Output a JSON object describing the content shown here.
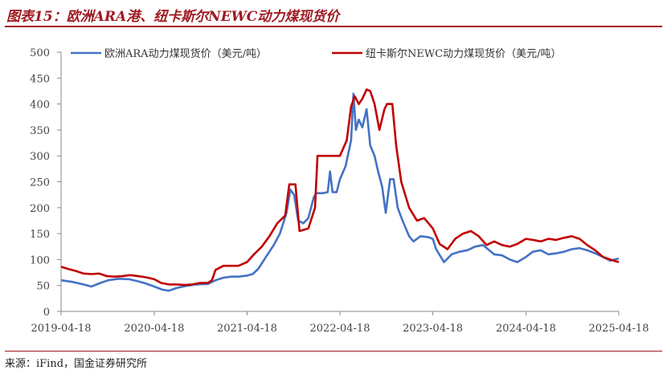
{
  "header": {
    "title": "图表15：欧洲ARA港、纽卡斯尔NEWC动力煤现货价"
  },
  "footer": {
    "source": "来源：iFind，国金证券研究所"
  },
  "colors": {
    "ara": "#4472c4",
    "newc": "#c00000",
    "accent": "#9e1b22"
  },
  "chart_data": {
    "type": "line",
    "title": "图表15：欧洲ARA港、纽卡斯尔NEWC动力煤现货价",
    "xlabel": "",
    "ylabel": "",
    "x_ticks": [
      "2019-04-18",
      "2020-04-18",
      "2021-04-18",
      "2022-04-18",
      "2023-04-18",
      "2024-04-18",
      "2025-04-18"
    ],
    "y_ticks": [
      0,
      50,
      100,
      150,
      200,
      250,
      300,
      350,
      400,
      450,
      500
    ],
    "ylim": [
      0,
      500
    ],
    "xlim": [
      "2019-04-18",
      "2025-04-18"
    ],
    "legend_position": "top",
    "grid": false,
    "series": [
      {
        "name": "欧洲ARA动力煤现货价（美元/吨）",
        "color": "#4472c4",
        "points": [
          [
            "2019-04-18",
            60
          ],
          [
            "2019-06-01",
            57
          ],
          [
            "2019-07-15",
            52
          ],
          [
            "2019-08-15",
            48
          ],
          [
            "2019-09-20",
            55
          ],
          [
            "2019-10-20",
            60
          ],
          [
            "2019-12-01",
            63
          ],
          [
            "2020-01-10",
            62
          ],
          [
            "2020-02-15",
            58
          ],
          [
            "2020-03-15",
            54
          ],
          [
            "2020-04-18",
            48
          ],
          [
            "2020-05-20",
            42
          ],
          [
            "2020-06-15",
            40
          ],
          [
            "2020-07-15",
            45
          ],
          [
            "2020-08-20",
            49
          ],
          [
            "2020-10-01",
            52
          ],
          [
            "2020-11-15",
            53
          ],
          [
            "2020-12-15",
            60
          ],
          [
            "2021-01-15",
            65
          ],
          [
            "2021-02-15",
            67
          ],
          [
            "2021-03-15",
            67
          ],
          [
            "2021-04-18",
            69
          ],
          [
            "2021-05-10",
            72
          ],
          [
            "2021-06-01",
            82
          ],
          [
            "2021-07-01",
            105
          ],
          [
            "2021-08-01",
            128
          ],
          [
            "2021-08-25",
            150
          ],
          [
            "2021-09-20",
            190
          ],
          [
            "2021-10-05",
            235
          ],
          [
            "2021-10-20",
            225
          ],
          [
            "2021-11-05",
            175
          ],
          [
            "2021-11-25",
            170
          ],
          [
            "2021-12-15",
            180
          ],
          [
            "2022-01-05",
            220
          ],
          [
            "2022-01-15",
            228
          ],
          [
            "2022-02-10",
            228
          ],
          [
            "2022-03-01",
            230
          ],
          [
            "2022-03-10",
            270
          ],
          [
            "2022-03-20",
            230
          ],
          [
            "2022-04-05",
            230
          ],
          [
            "2022-04-18",
            255
          ],
          [
            "2022-05-10",
            280
          ],
          [
            "2022-06-01",
            330
          ],
          [
            "2022-06-10",
            420
          ],
          [
            "2022-06-20",
            350
          ],
          [
            "2022-07-01",
            370
          ],
          [
            "2022-07-15",
            355
          ],
          [
            "2022-08-01",
            390
          ],
          [
            "2022-08-15",
            320
          ],
          [
            "2022-09-01",
            300
          ],
          [
            "2022-09-15",
            270
          ],
          [
            "2022-10-01",
            240
          ],
          [
            "2022-10-15",
            190
          ],
          [
            "2022-11-01",
            255
          ],
          [
            "2022-11-15",
            255
          ],
          [
            "2022-12-01",
            200
          ],
          [
            "2022-12-20",
            175
          ],
          [
            "2023-01-15",
            145
          ],
          [
            "2023-02-01",
            135
          ],
          [
            "2023-02-15",
            140
          ],
          [
            "2023-03-01",
            145
          ],
          [
            "2023-04-01",
            143
          ],
          [
            "2023-04-18",
            140
          ],
          [
            "2023-05-01",
            120
          ],
          [
            "2023-06-01",
            95
          ],
          [
            "2023-07-01",
            110
          ],
          [
            "2023-08-01",
            115
          ],
          [
            "2023-09-01",
            118
          ],
          [
            "2023-10-01",
            125
          ],
          [
            "2023-11-01",
            128
          ],
          [
            "2023-12-15",
            110
          ],
          [
            "2024-01-15",
            108
          ],
          [
            "2024-02-15",
            100
          ],
          [
            "2024-03-15",
            95
          ],
          [
            "2024-04-18",
            105
          ],
          [
            "2024-05-15",
            115
          ],
          [
            "2024-06-15",
            118
          ],
          [
            "2024-07-15",
            110
          ],
          [
            "2024-08-15",
            112
          ],
          [
            "2024-09-15",
            115
          ],
          [
            "2024-10-15",
            120
          ],
          [
            "2024-11-15",
            122
          ],
          [
            "2024-12-15",
            118
          ],
          [
            "2025-01-15",
            112
          ],
          [
            "2025-02-15",
            105
          ],
          [
            "2025-03-15",
            98
          ],
          [
            "2025-04-18",
            102
          ]
        ]
      },
      {
        "name": "纽卡斯尔NEWC动力煤现货价（美元/吨）",
        "color": "#c00000",
        "points": [
          [
            "2019-04-18",
            86
          ],
          [
            "2019-05-15",
            82
          ],
          [
            "2019-06-15",
            78
          ],
          [
            "2019-07-15",
            73
          ],
          [
            "2019-08-15",
            72
          ],
          [
            "2019-09-15",
            73
          ],
          [
            "2019-10-15",
            68
          ],
          [
            "2019-11-15",
            67
          ],
          [
            "2019-12-15",
            68
          ],
          [
            "2020-01-15",
            70
          ],
          [
            "2020-02-15",
            68
          ],
          [
            "2020-03-15",
            66
          ],
          [
            "2020-04-18",
            62
          ],
          [
            "2020-05-15",
            55
          ],
          [
            "2020-06-15",
            52
          ],
          [
            "2020-07-15",
            52
          ],
          [
            "2020-08-15",
            51
          ],
          [
            "2020-09-15",
            52
          ],
          [
            "2020-10-15",
            55
          ],
          [
            "2020-11-15",
            55
          ],
          [
            "2020-12-01",
            60
          ],
          [
            "2020-12-15",
            80
          ],
          [
            "2021-01-15",
            88
          ],
          [
            "2021-02-15",
            88
          ],
          [
            "2021-03-15",
            88
          ],
          [
            "2021-04-18",
            95
          ],
          [
            "2021-05-15",
            110
          ],
          [
            "2021-06-15",
            125
          ],
          [
            "2021-07-15",
            145
          ],
          [
            "2021-08-15",
            170
          ],
          [
            "2021-09-15",
            185
          ],
          [
            "2021-10-01",
            245
          ],
          [
            "2021-10-25",
            245
          ],
          [
            "2021-11-10",
            155
          ],
          [
            "2021-12-15",
            160
          ],
          [
            "2022-01-10",
            200
          ],
          [
            "2022-01-20",
            300
          ],
          [
            "2022-02-15",
            300
          ],
          [
            "2022-03-15",
            300
          ],
          [
            "2022-04-18",
            300
          ],
          [
            "2022-05-15",
            330
          ],
          [
            "2022-06-01",
            395
          ],
          [
            "2022-06-15",
            415
          ],
          [
            "2022-07-01",
            400
          ],
          [
            "2022-07-15",
            410
          ],
          [
            "2022-08-01",
            428
          ],
          [
            "2022-08-15",
            425
          ],
          [
            "2022-09-01",
            400
          ],
          [
            "2022-09-20",
            350
          ],
          [
            "2022-10-10",
            390
          ],
          [
            "2022-10-20",
            400
          ],
          [
            "2022-11-10",
            400
          ],
          [
            "2022-11-25",
            320
          ],
          [
            "2022-12-15",
            250
          ],
          [
            "2023-01-15",
            200
          ],
          [
            "2023-02-15",
            175
          ],
          [
            "2023-03-15",
            180
          ],
          [
            "2023-04-18",
            160
          ],
          [
            "2023-05-15",
            130
          ],
          [
            "2023-06-15",
            120
          ],
          [
            "2023-07-15",
            140
          ],
          [
            "2023-08-15",
            150
          ],
          [
            "2023-09-15",
            155
          ],
          [
            "2023-10-15",
            145
          ],
          [
            "2023-11-15",
            128
          ],
          [
            "2023-12-15",
            135
          ],
          [
            "2024-01-15",
            128
          ],
          [
            "2024-02-15",
            125
          ],
          [
            "2024-03-15",
            130
          ],
          [
            "2024-04-18",
            140
          ],
          [
            "2024-05-15",
            138
          ],
          [
            "2024-06-15",
            135
          ],
          [
            "2024-07-15",
            140
          ],
          [
            "2024-08-15",
            138
          ],
          [
            "2024-09-15",
            142
          ],
          [
            "2024-10-15",
            145
          ],
          [
            "2024-11-15",
            140
          ],
          [
            "2024-12-15",
            128
          ],
          [
            "2025-01-15",
            118
          ],
          [
            "2025-02-15",
            105
          ],
          [
            "2025-03-15",
            100
          ],
          [
            "2025-04-18",
            95
          ]
        ]
      }
    ]
  }
}
